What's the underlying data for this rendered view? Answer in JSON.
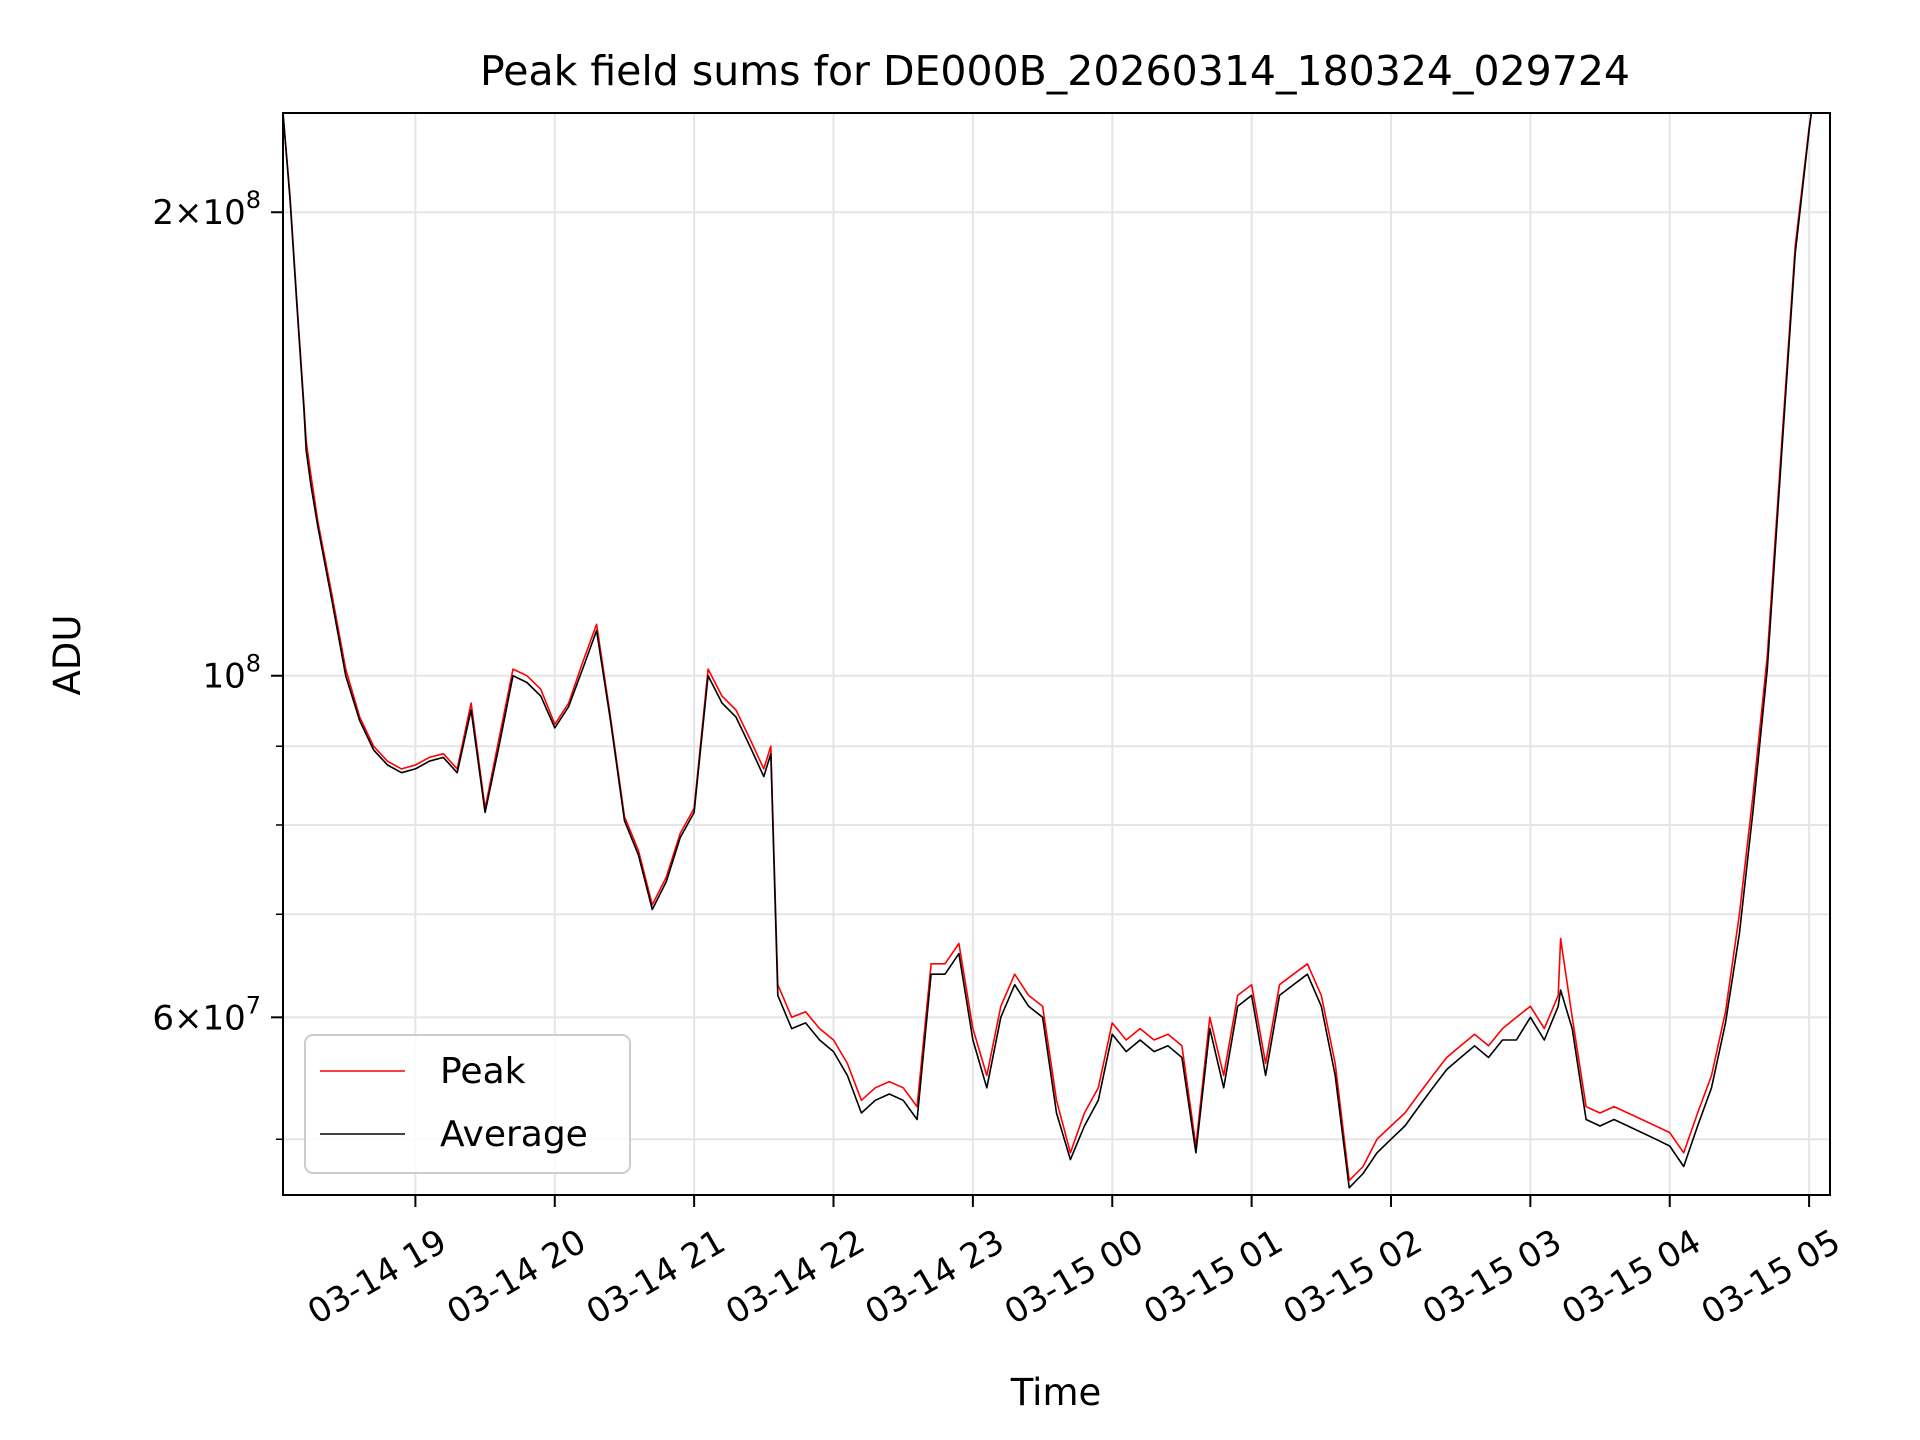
{
  "chart_data": {
    "type": "line",
    "title": "Peak field sums for DE000B_20260314_180324_029724",
    "xlabel": "Time",
    "ylabel": "ADU",
    "yscale": "log",
    "ylim": [
      46000000,
      232000000
    ],
    "xlim": [
      "2026-03-14 18:03",
      "2026-03-15 05:09"
    ],
    "grid": true,
    "legend_position": "lower-left",
    "x_tick_labels": [
      "03-14 19",
      "03-14 20",
      "03-14 21",
      "03-14 22",
      "03-14 23",
      "03-15 00",
      "03-15 01",
      "03-15 02",
      "03-15 03",
      "03-15 04",
      "03-15 05"
    ],
    "x_ticks": [
      "2026-03-14 19:00",
      "2026-03-14 20:00",
      "2026-03-14 21:00",
      "2026-03-14 22:00",
      "2026-03-14 23:00",
      "2026-03-15 00:00",
      "2026-03-15 01:00",
      "2026-03-15 02:00",
      "2026-03-15 03:00",
      "2026-03-15 04:00",
      "2026-03-15 05:00"
    ],
    "y_major_ticks": [
      {
        "value": 200000000,
        "mantissa": "2",
        "exponent": "8"
      },
      {
        "value": 100000000,
        "mantissa": "",
        "exponent": "8"
      },
      {
        "value": 60000000,
        "mantissa": "6",
        "exponent": "7"
      }
    ],
    "y_minor_ticks": [
      50000000,
      70000000,
      80000000,
      90000000
    ],
    "series": [
      {
        "name": "Peak",
        "color": "#ff0000",
        "x": [
          "2026-03-14 18:03",
          "2026-03-14 18:06",
          "2026-03-14 18:09",
          "2026-03-14 18:12",
          "2026-03-14 18:13",
          "2026-03-14 18:15",
          "2026-03-14 18:18",
          "2026-03-14 18:24",
          "2026-03-14 18:30",
          "2026-03-14 18:36",
          "2026-03-14 18:42",
          "2026-03-14 18:48",
          "2026-03-14 18:54",
          "2026-03-14 19:00",
          "2026-03-14 19:06",
          "2026-03-14 19:12",
          "2026-03-14 19:18",
          "2026-03-14 19:24",
          "2026-03-14 19:30",
          "2026-03-14 19:36",
          "2026-03-14 19:42",
          "2026-03-14 19:48",
          "2026-03-14 19:54",
          "2026-03-14 20:00",
          "2026-03-14 20:06",
          "2026-03-14 20:12",
          "2026-03-14 20:18",
          "2026-03-14 20:24",
          "2026-03-14 20:30",
          "2026-03-14 20:36",
          "2026-03-14 20:42",
          "2026-03-14 20:48",
          "2026-03-14 20:54",
          "2026-03-14 21:00",
          "2026-03-14 21:06",
          "2026-03-14 21:12",
          "2026-03-14 21:18",
          "2026-03-14 21:24",
          "2026-03-14 21:30",
          "2026-03-14 21:33",
          "2026-03-14 21:36",
          "2026-03-14 21:42",
          "2026-03-14 21:48",
          "2026-03-14 21:54",
          "2026-03-14 22:00",
          "2026-03-14 22:06",
          "2026-03-14 22:12",
          "2026-03-14 22:18",
          "2026-03-14 22:24",
          "2026-03-14 22:30",
          "2026-03-14 22:36",
          "2026-03-14 22:42",
          "2026-03-14 22:48",
          "2026-03-14 22:54",
          "2026-03-14 23:00",
          "2026-03-14 23:06",
          "2026-03-14 23:12",
          "2026-03-14 23:18",
          "2026-03-14 23:24",
          "2026-03-14 23:30",
          "2026-03-14 23:36",
          "2026-03-14 23:42",
          "2026-03-14 23:48",
          "2026-03-14 23:54",
          "2026-03-15 00:00",
          "2026-03-15 00:06",
          "2026-03-15 00:12",
          "2026-03-15 00:18",
          "2026-03-15 00:24",
          "2026-03-15 00:30",
          "2026-03-15 00:36",
          "2026-03-15 00:42",
          "2026-03-15 00:48",
          "2026-03-15 00:54",
          "2026-03-15 01:00",
          "2026-03-15 01:06",
          "2026-03-15 01:12",
          "2026-03-15 01:18",
          "2026-03-15 01:24",
          "2026-03-15 01:30",
          "2026-03-15 01:36",
          "2026-03-15 01:42",
          "2026-03-15 01:48",
          "2026-03-15 01:54",
          "2026-03-15 02:00",
          "2026-03-15 02:06",
          "2026-03-15 02:12",
          "2026-03-15 02:18",
          "2026-03-15 02:24",
          "2026-03-15 02:30",
          "2026-03-15 02:36",
          "2026-03-15 02:42",
          "2026-03-15 02:48",
          "2026-03-15 02:54",
          "2026-03-15 03:00",
          "2026-03-15 03:06",
          "2026-03-15 03:12",
          "2026-03-15 03:13",
          "2026-03-15 03:18",
          "2026-03-15 03:24",
          "2026-03-15 03:30",
          "2026-03-15 03:36",
          "2026-03-15 03:42",
          "2026-03-15 03:48",
          "2026-03-15 03:54",
          "2026-03-15 04:00",
          "2026-03-15 04:06",
          "2026-03-15 04:12",
          "2026-03-15 04:18",
          "2026-03-15 04:24",
          "2026-03-15 04:30",
          "2026-03-15 04:36",
          "2026-03-15 04:42",
          "2026-03-15 04:48",
          "2026-03-15 04:54",
          "2026-03-15 05:00",
          "2026-03-15 05:01"
        ],
        "values": [
          232000000,
          205000000,
          175000000,
          150000000,
          142000000,
          135000000,
          126000000,
          113000000,
          101000000,
          94000000,
          90000000,
          88000000,
          87000000,
          87500000,
          88500000,
          89000000,
          87000000,
          96000000,
          82000000,
          91000000,
          101000000,
          100000000,
          98000000,
          93000000,
          96000000,
          102000000,
          108000000,
          94000000,
          81000000,
          77000000,
          71000000,
          74000000,
          79000000,
          82000000,
          101000000,
          97000000,
          95000000,
          91000000,
          87000000,
          90000000,
          63000000,
          60000000,
          60500000,
          59000000,
          58000000,
          56000000,
          53000000,
          54000000,
          54500000,
          54000000,
          52500000,
          65000000,
          65000000,
          67000000,
          59000000,
          55000000,
          61000000,
          64000000,
          62000000,
          61000000,
          53000000,
          49000000,
          52000000,
          54000000,
          59500000,
          58000000,
          59000000,
          58000000,
          58500000,
          57500000,
          49500000,
          60000000,
          55000000,
          62000000,
          63000000,
          56000000,
          63000000,
          64000000,
          65000000,
          62000000,
          56000000,
          47000000,
          48000000,
          50000000,
          51000000,
          52000000,
          53500000,
          55000000,
          56500000,
          57500000,
          58500000,
          57500000,
          59000000,
          60000000,
          61000000,
          59000000,
          62000000,
          67500000,
          60000000,
          52500000,
          52000000,
          52500000,
          52000000,
          51500000,
          51000000,
          50500000,
          49000000,
          52000000,
          55000000,
          60500000,
          70000000,
          84000000,
          103000000,
          140000000,
          190000000,
          227000000,
          232000000
        ]
      },
      {
        "name": "Average",
        "color": "#000000",
        "x": [
          "2026-03-14 18:03",
          "2026-03-14 18:06",
          "2026-03-14 18:09",
          "2026-03-14 18:12",
          "2026-03-14 18:13",
          "2026-03-14 18:15",
          "2026-03-14 18:18",
          "2026-03-14 18:24",
          "2026-03-14 18:30",
          "2026-03-14 18:36",
          "2026-03-14 18:42",
          "2026-03-14 18:48",
          "2026-03-14 18:54",
          "2026-03-14 19:00",
          "2026-03-14 19:06",
          "2026-03-14 19:12",
          "2026-03-14 19:18",
          "2026-03-14 19:24",
          "2026-03-14 19:30",
          "2026-03-14 19:36",
          "2026-03-14 19:42",
          "2026-03-14 19:48",
          "2026-03-14 19:54",
          "2026-03-14 20:00",
          "2026-03-14 20:06",
          "2026-03-14 20:12",
          "2026-03-14 20:18",
          "2026-03-14 20:24",
          "2026-03-14 20:30",
          "2026-03-14 20:36",
          "2026-03-14 20:42",
          "2026-03-14 20:48",
          "2026-03-14 20:54",
          "2026-03-14 21:00",
          "2026-03-14 21:06",
          "2026-03-14 21:12",
          "2026-03-14 21:18",
          "2026-03-14 21:24",
          "2026-03-14 21:30",
          "2026-03-14 21:33",
          "2026-03-14 21:36",
          "2026-03-14 21:42",
          "2026-03-14 21:48",
          "2026-03-14 21:54",
          "2026-03-14 22:00",
          "2026-03-14 22:06",
          "2026-03-14 22:12",
          "2026-03-14 22:18",
          "2026-03-14 22:24",
          "2026-03-14 22:30",
          "2026-03-14 22:36",
          "2026-03-14 22:42",
          "2026-03-14 22:48",
          "2026-03-14 22:54",
          "2026-03-14 23:00",
          "2026-03-14 23:06",
          "2026-03-14 23:12",
          "2026-03-14 23:18",
          "2026-03-14 23:24",
          "2026-03-14 23:30",
          "2026-03-14 23:36",
          "2026-03-14 23:42",
          "2026-03-14 23:48",
          "2026-03-14 23:54",
          "2026-03-15 00:00",
          "2026-03-15 00:06",
          "2026-03-15 00:12",
          "2026-03-15 00:18",
          "2026-03-15 00:24",
          "2026-03-15 00:30",
          "2026-03-15 00:36",
          "2026-03-15 00:42",
          "2026-03-15 00:48",
          "2026-03-15 00:54",
          "2026-03-15 01:00",
          "2026-03-15 01:06",
          "2026-03-15 01:12",
          "2026-03-15 01:18",
          "2026-03-15 01:24",
          "2026-03-15 01:30",
          "2026-03-15 01:36",
          "2026-03-15 01:42",
          "2026-03-15 01:48",
          "2026-03-15 01:54",
          "2026-03-15 02:00",
          "2026-03-15 02:06",
          "2026-03-15 02:12",
          "2026-03-15 02:18",
          "2026-03-15 02:24",
          "2026-03-15 02:30",
          "2026-03-15 02:36",
          "2026-03-15 02:42",
          "2026-03-15 02:48",
          "2026-03-15 02:54",
          "2026-03-15 03:00",
          "2026-03-15 03:06",
          "2026-03-15 03:12",
          "2026-03-15 03:13",
          "2026-03-15 03:18",
          "2026-03-15 03:24",
          "2026-03-15 03:30",
          "2026-03-15 03:36",
          "2026-03-15 03:42",
          "2026-03-15 03:48",
          "2026-03-15 03:54",
          "2026-03-15 04:00",
          "2026-03-15 04:06",
          "2026-03-15 04:12",
          "2026-03-15 04:18",
          "2026-03-15 04:24",
          "2026-03-15 04:30",
          "2026-03-15 04:36",
          "2026-03-15 04:42",
          "2026-03-15 04:48",
          "2026-03-15 04:54",
          "2026-03-15 05:00",
          "2026-03-15 05:01"
        ],
        "values": [
          232000000,
          204000000,
          174000000,
          149000000,
          140000000,
          133000000,
          125000000,
          112000000,
          100000000,
          93500000,
          89500000,
          87500000,
          86500000,
          87000000,
          88000000,
          88500000,
          86500000,
          95000000,
          81500000,
          90000000,
          100000000,
          99000000,
          97000000,
          92500000,
          95500000,
          101000000,
          107000000,
          93500000,
          80500000,
          76500000,
          70500000,
          73500000,
          78500000,
          81500000,
          100000000,
          96000000,
          94000000,
          90000000,
          86000000,
          89000000,
          62000000,
          59000000,
          59500000,
          58000000,
          57000000,
          55000000,
          52000000,
          53000000,
          53500000,
          53000000,
          51500000,
          64000000,
          64000000,
          66000000,
          58000000,
          54000000,
          60000000,
          63000000,
          61000000,
          60000000,
          52000000,
          48500000,
          51000000,
          53000000,
          58500000,
          57000000,
          58000000,
          57000000,
          57500000,
          56500000,
          49000000,
          59000000,
          54000000,
          61000000,
          62000000,
          55000000,
          62000000,
          63000000,
          64000000,
          61000000,
          55000000,
          46500000,
          47500000,
          49000000,
          50000000,
          51000000,
          52500000,
          54000000,
          55500000,
          56500000,
          57500000,
          56500000,
          58000000,
          58000000,
          60000000,
          58000000,
          61000000,
          62500000,
          59000000,
          51500000,
          51000000,
          51500000,
          51000000,
          50500000,
          50000000,
          49500000,
          48000000,
          51000000,
          54000000,
          59500000,
          68000000,
          82000000,
          101000000,
          138000000,
          188000000,
          226000000,
          232000000
        ]
      }
    ]
  }
}
